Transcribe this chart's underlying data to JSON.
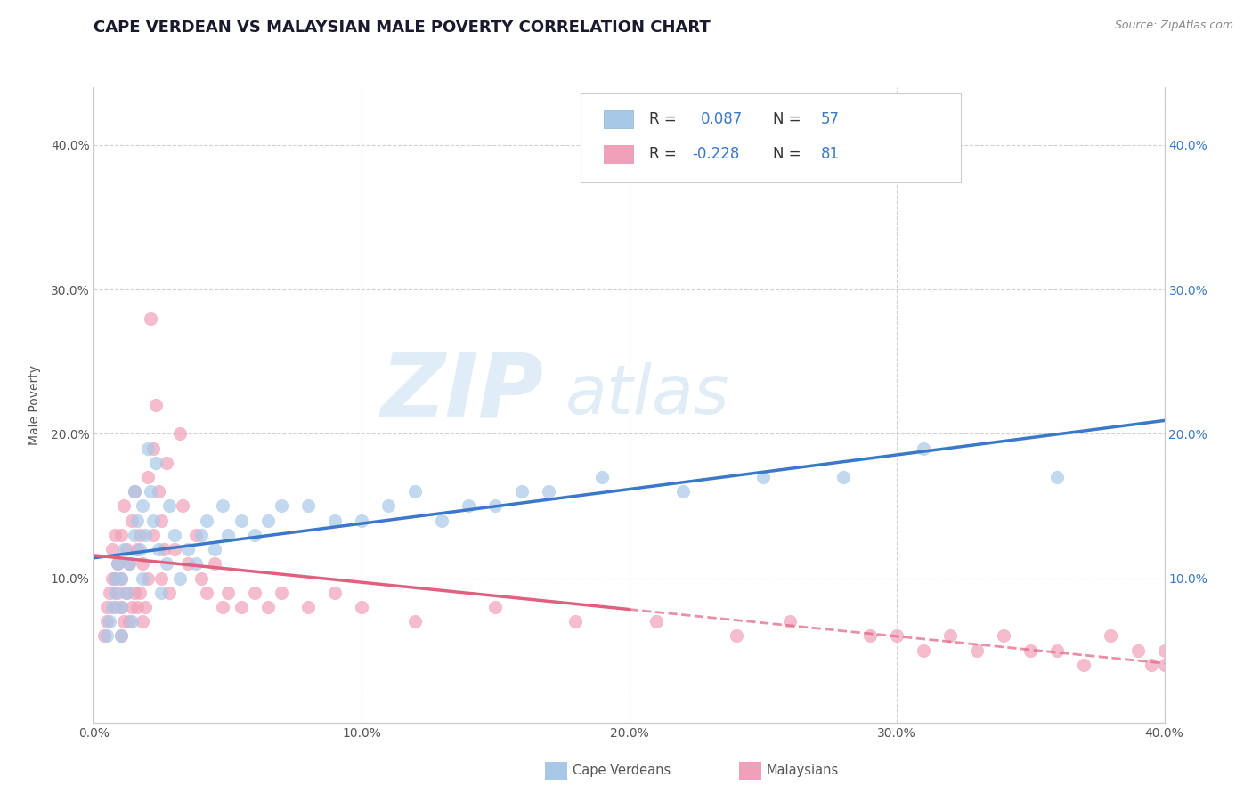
{
  "title": "CAPE VERDEAN VS MALAYSIAN MALE POVERTY CORRELATION CHART",
  "source": "Source: ZipAtlas.com",
  "ylabel": "Male Poverty",
  "watermark_zip": "ZIP",
  "watermark_atlas": "atlas",
  "xlim": [
    0.0,
    0.4
  ],
  "ylim": [
    0.0,
    0.44
  ],
  "yticks": [
    0.0,
    0.1,
    0.2,
    0.3,
    0.4
  ],
  "xticks": [
    0.0,
    0.1,
    0.2,
    0.3,
    0.4
  ],
  "right_ytick_pos": [
    0.1,
    0.2,
    0.3,
    0.4
  ],
  "cv_color": "#a8c8e8",
  "my_color": "#f0a0b8",
  "cv_line_color": "#3a78c9",
  "my_line_color": "#e06080",
  "cv_R": 0.087,
  "cv_N": 57,
  "my_R": -0.228,
  "my_N": 81,
  "cv_x": [
    0.005,
    0.006,
    0.007,
    0.008,
    0.008,
    0.009,
    0.01,
    0.01,
    0.01,
    0.011,
    0.012,
    0.013,
    0.014,
    0.015,
    0.015,
    0.016,
    0.017,
    0.018,
    0.018,
    0.019,
    0.02,
    0.021,
    0.022,
    0.023,
    0.024,
    0.025,
    0.027,
    0.028,
    0.03,
    0.032,
    0.035,
    0.038,
    0.04,
    0.042,
    0.045,
    0.048,
    0.05,
    0.055,
    0.06,
    0.065,
    0.07,
    0.08,
    0.09,
    0.1,
    0.11,
    0.12,
    0.13,
    0.14,
    0.15,
    0.16,
    0.17,
    0.19,
    0.22,
    0.25,
    0.28,
    0.31,
    0.36
  ],
  "cv_y": [
    0.06,
    0.07,
    0.08,
    0.09,
    0.1,
    0.11,
    0.06,
    0.08,
    0.1,
    0.12,
    0.09,
    0.11,
    0.07,
    0.13,
    0.16,
    0.14,
    0.12,
    0.15,
    0.1,
    0.13,
    0.19,
    0.16,
    0.14,
    0.18,
    0.12,
    0.09,
    0.11,
    0.15,
    0.13,
    0.1,
    0.12,
    0.11,
    0.13,
    0.14,
    0.12,
    0.15,
    0.13,
    0.14,
    0.13,
    0.14,
    0.15,
    0.15,
    0.14,
    0.14,
    0.15,
    0.16,
    0.14,
    0.15,
    0.15,
    0.16,
    0.16,
    0.17,
    0.16,
    0.17,
    0.17,
    0.19,
    0.17
  ],
  "my_x": [
    0.004,
    0.005,
    0.005,
    0.006,
    0.007,
    0.007,
    0.008,
    0.008,
    0.008,
    0.009,
    0.009,
    0.01,
    0.01,
    0.01,
    0.01,
    0.011,
    0.011,
    0.012,
    0.012,
    0.013,
    0.013,
    0.014,
    0.014,
    0.015,
    0.015,
    0.016,
    0.016,
    0.017,
    0.017,
    0.018,
    0.018,
    0.019,
    0.02,
    0.02,
    0.021,
    0.022,
    0.022,
    0.023,
    0.024,
    0.025,
    0.025,
    0.026,
    0.027,
    0.028,
    0.03,
    0.032,
    0.033,
    0.035,
    0.038,
    0.04,
    0.042,
    0.045,
    0.048,
    0.05,
    0.055,
    0.06,
    0.065,
    0.07,
    0.08,
    0.09,
    0.1,
    0.12,
    0.15,
    0.18,
    0.21,
    0.24,
    0.26,
    0.29,
    0.3,
    0.31,
    0.32,
    0.33,
    0.34,
    0.35,
    0.36,
    0.37,
    0.38,
    0.39,
    0.395,
    0.4,
    0.4
  ],
  "my_y": [
    0.06,
    0.07,
    0.08,
    0.09,
    0.1,
    0.12,
    0.08,
    0.1,
    0.13,
    0.09,
    0.11,
    0.06,
    0.08,
    0.1,
    0.13,
    0.07,
    0.15,
    0.09,
    0.12,
    0.07,
    0.11,
    0.08,
    0.14,
    0.09,
    0.16,
    0.08,
    0.12,
    0.09,
    0.13,
    0.07,
    0.11,
    0.08,
    0.1,
    0.17,
    0.28,
    0.19,
    0.13,
    0.22,
    0.16,
    0.1,
    0.14,
    0.12,
    0.18,
    0.09,
    0.12,
    0.2,
    0.15,
    0.11,
    0.13,
    0.1,
    0.09,
    0.11,
    0.08,
    0.09,
    0.08,
    0.09,
    0.08,
    0.09,
    0.08,
    0.09,
    0.08,
    0.07,
    0.08,
    0.07,
    0.07,
    0.06,
    0.07,
    0.06,
    0.06,
    0.05,
    0.06,
    0.05,
    0.06,
    0.05,
    0.05,
    0.04,
    0.06,
    0.05,
    0.04,
    0.04,
    0.05
  ],
  "background_color": "#ffffff",
  "grid_color": "#cccccc",
  "title_color": "#1a1a2e",
  "title_fontsize": 13,
  "axis_label_fontsize": 10,
  "tick_fontsize": 10
}
